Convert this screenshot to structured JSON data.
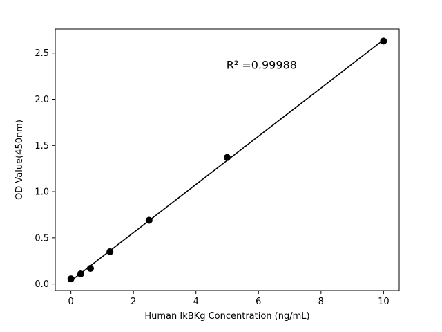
{
  "figure": {
    "background": "#ffffff"
  },
  "chart_data": {
    "type": "scatter",
    "title": "",
    "xlabel": "Human IkBKg Concentration (ng/mL)",
    "ylabel": "OD Value(450nm)",
    "x": [
      0,
      0.3125,
      0.625,
      1.25,
      2.5,
      5,
      10
    ],
    "y": [
      0.056,
      0.11,
      0.17,
      0.35,
      0.69,
      1.37,
      2.63
    ],
    "xlim": [
      -0.5,
      10.5
    ],
    "ylim": [
      -0.07,
      2.76
    ],
    "xticks": [
      0,
      2,
      4,
      6,
      8,
      10
    ],
    "xticklabels": [
      "0",
      "2",
      "4",
      "6",
      "8",
      "10"
    ],
    "yticks": [
      0.0,
      0.5,
      1.0,
      1.5,
      2.0,
      2.5
    ],
    "yticklabels": [
      "0.0",
      "0.5",
      "1.0",
      "1.5",
      "2.0",
      "2.5"
    ],
    "annotation": {
      "text": "R² =0.99988",
      "x": 6.1,
      "y": 2.33
    },
    "line": true,
    "line_color": "#000000",
    "marker_color": "#000000",
    "marker_size": 5,
    "grid": false,
    "legend": null
  }
}
